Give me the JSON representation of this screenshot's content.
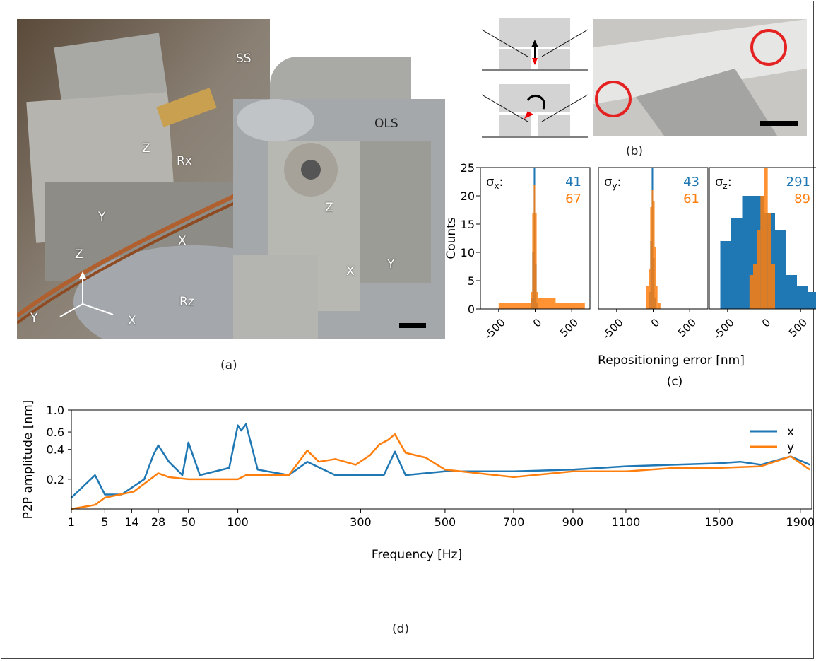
{
  "panel_a": {
    "caption": "(a)",
    "labels": {
      "ss": "SS",
      "ols": "OLS",
      "z1": "Z",
      "rx": "Rx",
      "y1": "Y",
      "x1": "X",
      "z2": "Z",
      "x2": "X",
      "y2": "Y",
      "rz": "Rz",
      "axis_z": "Z",
      "axis_y": "Y",
      "axis_x": "X"
    }
  },
  "panel_b": {
    "caption": "(b)"
  },
  "panel_c": {
    "caption": "(c)",
    "ylabel": "Counts",
    "xlabel": "Repositioning error [nm]",
    "yticks": [
      "0",
      "5",
      "10",
      "15",
      "20",
      "25"
    ],
    "xticks": [
      "-500",
      "0",
      "500"
    ],
    "colors": {
      "blue": "#1f77b4",
      "orange": "#ff7f0e"
    },
    "subplots": [
      {
        "sigma_base": "σ",
        "sigma_sub": "x",
        "sigma_colon": ":",
        "blue_value": "41",
        "orange_value": "67",
        "blue_hist": {
          "bins": [
            -60,
            -40,
            -20,
            0,
            20
          ],
          "counts": [
            2,
            10,
            25,
            8,
            1
          ]
        },
        "orange_hist": {
          "bins": [
            -500,
            -100,
            -60,
            -40,
            -20,
            0,
            20,
            40,
            280
          ],
          "counts": [
            1,
            1,
            3,
            17,
            22,
            17,
            3,
            2,
            1
          ]
        }
      },
      {
        "sigma_base": "σ",
        "sigma_sub": "y",
        "sigma_colon": ":",
        "blue_value": "43",
        "orange_value": "61",
        "blue_hist": {
          "bins": [
            -60,
            -40,
            -20,
            0,
            20
          ],
          "counts": [
            3,
            12,
            25,
            9,
            2
          ]
        },
        "orange_hist": {
          "bins": [
            -100,
            -60,
            -40,
            -20,
            0,
            20,
            40,
            60
          ],
          "counts": [
            4,
            7,
            18,
            21,
            19,
            11,
            4,
            1
          ]
        }
      },
      {
        "sigma_base": "σ",
        "sigma_sub": "z",
        "sigma_colon": ":",
        "blue_value": "291",
        "orange_value": "89",
        "blue_hist": {
          "bins": [
            -600,
            -450,
            -300,
            -150,
            0,
            150,
            300,
            450,
            600
          ],
          "counts": [
            12,
            16,
            20,
            20,
            17,
            14,
            6,
            4,
            3
          ]
        },
        "orange_hist": {
          "bins": [
            -200,
            -150,
            -100,
            -50,
            0,
            50,
            100
          ],
          "counts": [
            6,
            8,
            14,
            20,
            25,
            17,
            8
          ]
        }
      }
    ]
  },
  "panel_d": {
    "caption": "(d)",
    "chart_data": {
      "type": "line",
      "xlabel": "Frequency [Hz]",
      "ylabel": "P2P amplitude [nm]",
      "xticks": [
        "1",
        "5",
        "14",
        "28",
        "50",
        "100",
        "300",
        "500",
        "700",
        "900",
        "1100",
        "1500",
        "1900"
      ],
      "yticks": [
        "0.2",
        "0.4",
        "0.6",
        "1.0"
      ],
      "legend": "top-right",
      "series": [
        {
          "name": "x",
          "color": "#1f77b4",
          "points": [
            [
              1,
              0.13
            ],
            [
              3,
              0.22
            ],
            [
              5,
              0.14
            ],
            [
              10,
              0.14
            ],
            [
              20,
              0.2
            ],
            [
              25,
              0.35
            ],
            [
              28,
              0.44
            ],
            [
              35,
              0.3
            ],
            [
              45,
              0.22
            ],
            [
              50,
              0.47
            ],
            [
              60,
              0.22
            ],
            [
              90,
              0.26
            ],
            [
              100,
              0.7
            ],
            [
              104,
              0.62
            ],
            [
              110,
              0.72
            ],
            [
              125,
              0.25
            ],
            [
              170,
              0.22
            ],
            [
              200,
              0.3
            ],
            [
              250,
              0.22
            ],
            [
              350,
              0.22
            ],
            [
              375,
              0.38
            ],
            [
              400,
              0.22
            ],
            [
              500,
              0.24
            ],
            [
              700,
              0.24
            ],
            [
              900,
              0.25
            ],
            [
              1100,
              0.27
            ],
            [
              1300,
              0.28
            ],
            [
              1500,
              0.29
            ],
            [
              1600,
              0.3
            ],
            [
              1700,
              0.28
            ],
            [
              1850,
              0.34
            ],
            [
              1950,
              0.28
            ]
          ]
        },
        {
          "name": "y",
          "color": "#ff7f0e",
          "points": [
            [
              1,
              0.1
            ],
            [
              3,
              0.11
            ],
            [
              5,
              0.13
            ],
            [
              15,
              0.15
            ],
            [
              28,
              0.23
            ],
            [
              35,
              0.21
            ],
            [
              50,
              0.2
            ],
            [
              100,
              0.2
            ],
            [
              110,
              0.22
            ],
            [
              150,
              0.22
            ],
            [
              170,
              0.22
            ],
            [
              200,
              0.39
            ],
            [
              220,
              0.3
            ],
            [
              250,
              0.32
            ],
            [
              290,
              0.28
            ],
            [
              320,
              0.35
            ],
            [
              340,
              0.45
            ],
            [
              360,
              0.5
            ],
            [
              375,
              0.57
            ],
            [
              400,
              0.37
            ],
            [
              450,
              0.33
            ],
            [
              500,
              0.25
            ],
            [
              700,
              0.21
            ],
            [
              900,
              0.24
            ],
            [
              1100,
              0.24
            ],
            [
              1300,
              0.26
            ],
            [
              1500,
              0.26
            ],
            [
              1700,
              0.27
            ],
            [
              1850,
              0.34
            ],
            [
              1950,
              0.25
            ]
          ]
        }
      ]
    }
  }
}
